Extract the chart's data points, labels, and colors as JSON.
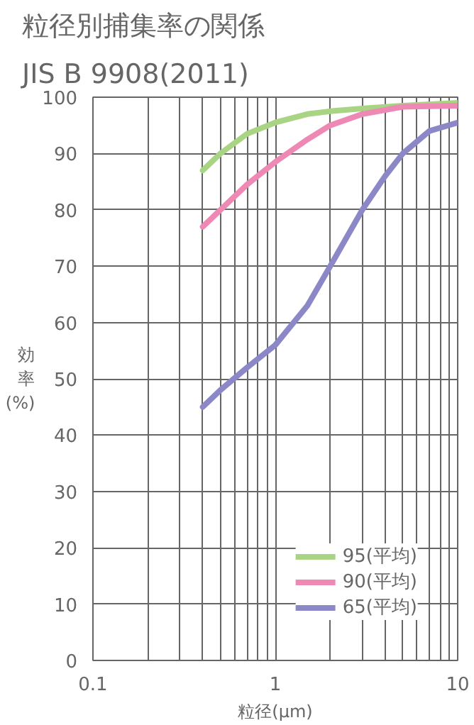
{
  "chart_data": {
    "type": "line",
    "title": "粒径別捕集率の関係",
    "subtitle": "JIS B 9908(2011)",
    "xlabel": "粒径(μm)",
    "ylabel": "効率(%)",
    "log": "x",
    "xlim": [
      0.1,
      10
    ],
    "ylim": [
      0,
      100
    ],
    "xticks": [
      0.1,
      {
        "value": 0.2,
        "label": null
      },
      {
        "value": 0.3,
        "label": null
      },
      {
        "value": 0.4,
        "label": null
      },
      {
        "value": 0.5,
        "label": null
      },
      {
        "value": 0.6,
        "label": null
      },
      {
        "value": 0.7,
        "label": null
      },
      {
        "value": 0.8,
        "label": null
      },
      {
        "value": 0.9,
        "label": null
      },
      1,
      {
        "value": 2,
        "label": null
      },
      {
        "value": 3,
        "label": null
      },
      {
        "value": 4,
        "label": null
      },
      {
        "value": 5,
        "label": null
      },
      {
        "value": 6,
        "label": null
      },
      {
        "value": 7,
        "label": null
      },
      {
        "value": 8,
        "label": null
      },
      {
        "value": 9,
        "label": null
      },
      10
    ],
    "yticks": [
      0,
      10,
      20,
      30,
      40,
      50,
      60,
      70,
      80,
      90,
      100
    ],
    "grid": true,
    "legend": "bottom right",
    "line_style": "solid",
    "series": [
      {
        "name": "95(平均)",
        "color": "#a8d484",
        "x": [
          0.4,
          0.5,
          0.7,
          1,
          1.5,
          2,
          3,
          5,
          10
        ],
        "values": [
          87,
          90,
          93.5,
          95.5,
          97,
          97.5,
          98,
          98.5,
          99
        ]
      },
      {
        "name": "90(平均)",
        "color": "#ee88b4",
        "x": [
          0.4,
          0.5,
          0.7,
          1,
          1.5,
          2,
          3,
          5,
          10
        ],
        "values": [
          77,
          80,
          84.5,
          88.5,
          92.5,
          95,
          97,
          98.3,
          98.5
        ]
      },
      {
        "name": "65(平均)",
        "color": "#8c88c8",
        "x": [
          0.4,
          0.5,
          0.7,
          1,
          1.5,
          2,
          3,
          4,
          5,
          7,
          10
        ],
        "values": [
          45,
          48,
          52,
          56,
          63,
          70,
          80,
          86,
          90,
          94,
          95.5
        ]
      }
    ]
  }
}
